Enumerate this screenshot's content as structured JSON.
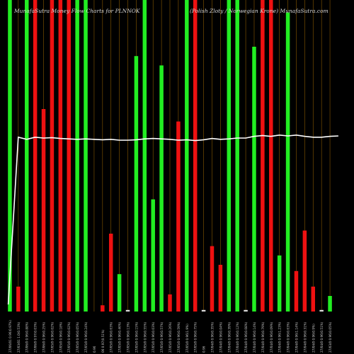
{
  "header": {
    "title": "MunafaSutra Money Flow Charts for PLNNOK",
    "subtitle": "(Polish Zloty / Norwegian Krone) MunafaSutra.com"
  },
  "colors": {
    "background": "#000000",
    "up_bar": "#22ee22",
    "down_bar": "#ee1111",
    "grid_line": "#8a5a00",
    "price_line": "#ffffff",
    "label_text": "#cccccc"
  },
  "chart_data": {
    "type": "bar",
    "bars": [
      {
        "label": "27/06/01 0.96(0.97%)",
        "value": 100,
        "dir": "up"
      },
      {
        "label": "27/03/01 1.0(0.53%)",
        "value": 8,
        "dir": "down"
      },
      {
        "label": "27/06/0 0.96(0.88%)",
        "value": 100,
        "dir": "up"
      },
      {
        "label": "27/06/0 0.97(0.03%)",
        "value": 100,
        "dir": "down"
      },
      {
        "label": "27/06/0 0.96(0.25%)",
        "value": 65,
        "dir": "down"
      },
      {
        "label": "27/05/0 0.96(0.02%)",
        "value": 100,
        "dir": "down"
      },
      {
        "label": "27/05/0 0.96(0.18%)",
        "value": 100,
        "dir": "down"
      },
      {
        "label": "27/05/0 0.96(0.02%)",
        "value": 100,
        "dir": "down"
      },
      {
        "label": "27/05/0 0.96(0.05%)",
        "value": 100,
        "dir": "up"
      },
      {
        "label": "27/05/0 0.96(0.24%)",
        "value": 100,
        "dir": "up"
      },
      {
        "label": "0.96",
        "value": 100,
        "dir": "none"
      },
      {
        "label": "06 0.97(0.51%)",
        "value": 2,
        "dir": "down"
      },
      {
        "label": "27/05/0 0.96(0.63%)",
        "value": 25,
        "dir": "down"
      },
      {
        "label": "27/05/0 0.96(0.46%)",
        "value": 12,
        "dir": "up"
      },
      {
        "label": "27/05/0 0.96(0.13%)",
        "value": 0.5,
        "dir": "flat"
      },
      {
        "label": "27/05/0 0.96(0.15%)",
        "value": 82,
        "dir": "up"
      },
      {
        "label": "27/05/0 0.96(0.55%)",
        "value": 100,
        "dir": "up"
      },
      {
        "label": "27/05/0 0.96(0.03%)",
        "value": 36,
        "dir": "up"
      },
      {
        "label": "27/05/0 0.96(0.57%)",
        "value": 79,
        "dir": "up"
      },
      {
        "label": "27/05/0 0.96(0.26%)",
        "value": 5.5,
        "dir": "down"
      },
      {
        "label": "27/05/0 0.96(0.59%)",
        "value": 61,
        "dir": "down"
      },
      {
        "label": "27/05/0 0.96(1.9%)",
        "value": 100,
        "dir": "up"
      },
      {
        "label": "27/05/0 0.96(0.75%)",
        "value": 100,
        "dir": "down"
      },
      {
        "label": "0.96",
        "value": 0.5,
        "dir": "flat"
      },
      {
        "label": "27/04/0 0.96(0.35%)",
        "value": 21,
        "dir": "down"
      },
      {
        "label": "27/04/0 0.96(0.04%)",
        "value": 15,
        "dir": "down"
      },
      {
        "label": "27/04/0 0.96(0.39%)",
        "value": 100,
        "dir": "up"
      },
      {
        "label": "27/04/0 0.96(0.12%)",
        "value": 100,
        "dir": "up"
      },
      {
        "label": "27/04/0 0.96(0.08%)",
        "value": 0.5,
        "dir": "flat"
      },
      {
        "label": "27/04/0 0.96(0.14%)",
        "value": 85,
        "dir": "up"
      },
      {
        "label": "27/04/0 0.96(0.79%)",
        "value": 100,
        "dir": "down"
      },
      {
        "label": "27/04/0 0.96(0.09%)",
        "value": 100,
        "dir": "down"
      },
      {
        "label": "27/04/0 0.96(1.23%)",
        "value": 18,
        "dir": "up"
      },
      {
        "label": "27/04/0 0.96(0.63%)",
        "value": 96,
        "dir": "up"
      },
      {
        "label": "27/04/0 0.96(1.14%)",
        "value": 13,
        "dir": "down"
      },
      {
        "label": "27/04/0 0.96(0.31%)",
        "value": 26,
        "dir": "down"
      },
      {
        "label": "27/04/0 0.96(0.9%)",
        "value": 8,
        "dir": "down"
      },
      {
        "label": "27/04/0 0.96(0.51%)",
        "value": 0.5,
        "dir": "flat"
      },
      {
        "label": "27/03/0 0.96(0.05%)",
        "value": 5,
        "dir": "up"
      }
    ],
    "price_line": [
      0.0,
      0.09,
      0.085,
      0.09,
      0.088,
      0.089,
      0.087,
      0.086,
      0.085,
      0.086,
      0.085,
      0.084,
      0.085,
      0.083,
      0.083,
      0.084,
      0.086,
      0.087,
      0.086,
      0.085,
      0.083,
      0.084,
      0.082,
      0.084,
      0.087,
      0.085,
      0.086,
      0.088,
      0.088,
      0.092,
      0.094,
      0.092,
      0.095,
      0.093,
      0.095,
      0.092,
      0.09,
      0.09,
      0.092,
      0.093
    ]
  }
}
